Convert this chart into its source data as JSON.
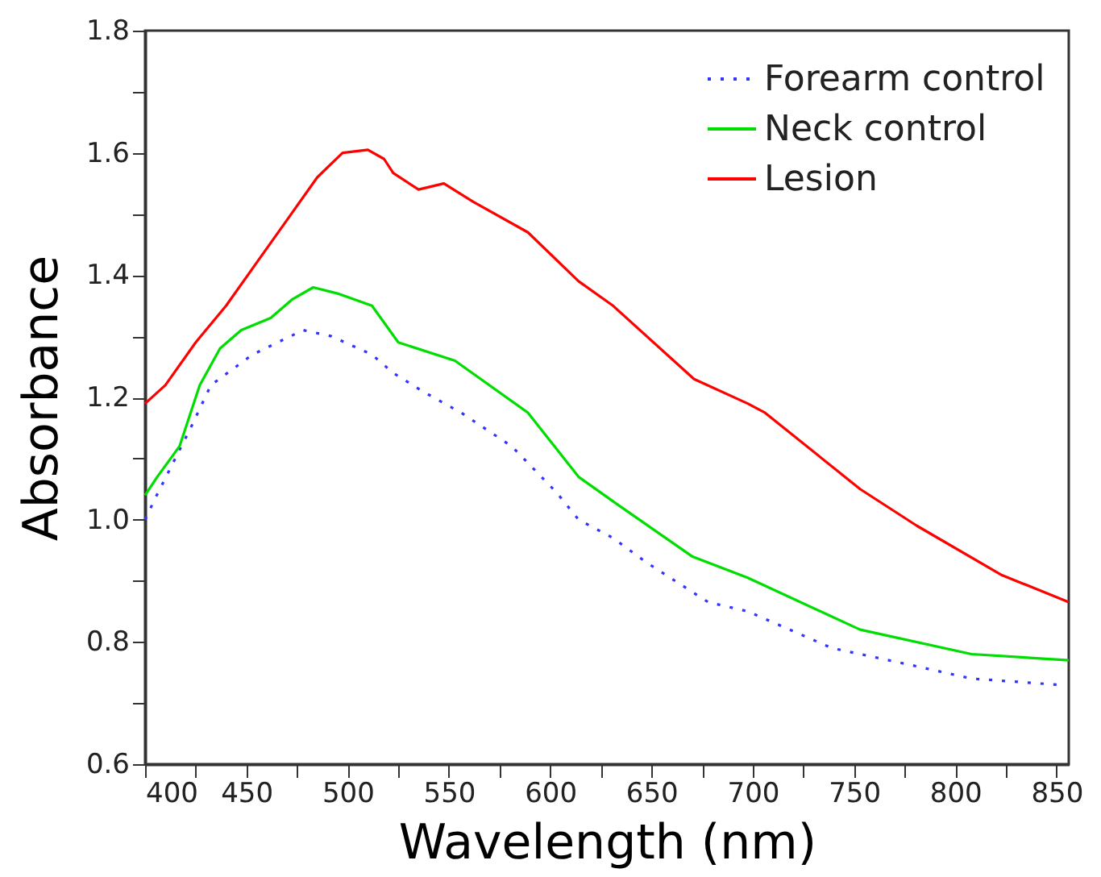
{
  "chart_data": {
    "type": "line",
    "xlabel": "Wavelength (nm)",
    "ylabel": "Absorbance",
    "xlim": [
      400,
      856
    ],
    "ylim": [
      0.6,
      1.8
    ],
    "xticks": [
      400,
      {
        "value": 425,
        "label": null
      },
      450,
      {
        "value": 475,
        "label": null
      },
      500,
      {
        "value": 525,
        "label": null
      },
      550,
      {
        "value": 575,
        "label": null
      },
      600,
      {
        "value": 625,
        "label": null
      },
      650,
      {
        "value": 675,
        "label": null
      },
      700,
      {
        "value": 725,
        "label": null
      },
      750,
      {
        "value": 775,
        "label": null
      },
      800,
      {
        "value": 825,
        "label": null
      },
      850
    ],
    "yticks": [
      {
        "value": 0.6,
        "label": "0.6"
      },
      {
        "value": 0.7,
        "label": null
      },
      {
        "value": 0.8,
        "label": "0.8"
      },
      {
        "value": 0.9,
        "label": null
      },
      {
        "value": 1,
        "label": "1.0"
      },
      {
        "value": 1.1,
        "label": null
      },
      {
        "value": 1.2,
        "label": "1.2"
      },
      {
        "value": 1.3,
        "label": null
      },
      {
        "value": 1.4,
        "label": "1.4"
      },
      {
        "value": 1.5,
        "label": null
      },
      {
        "value": 1.6,
        "label": "1.6"
      },
      {
        "value": 1.7,
        "label": null
      },
      {
        "value": 1.8,
        "label": "1.8"
      }
    ],
    "grid": false,
    "legend": "top right",
    "marker": "none",
    "series": [
      {
        "name": "Forearm control",
        "color": "#3333ff",
        "line_style": "dotted",
        "x": [
          400,
          405,
          422.5,
          432.5,
          453,
          478,
          492,
          512,
          522.5,
          537,
          556,
          581,
          603,
          614,
          631,
          647.5,
          678,
          697.5,
          739,
          781,
          808,
          850
        ],
        "values": [
          1.0,
          1.035,
          1.15,
          1.22,
          1.27,
          1.31,
          1.3,
          1.27,
          1.24,
          1.21,
          1.175,
          1.12,
          1.045,
          1.0,
          0.97,
          0.93,
          0.865,
          0.85,
          0.79,
          0.76,
          0.74,
          0.73
        ]
      },
      {
        "name": "Neck control",
        "color": "#00dd00",
        "line_style": "solid",
        "x": [
          400,
          406,
          417,
          427,
          437,
          447.5,
          462,
          472.5,
          483,
          495,
          512,
          525,
          553,
          589,
          614,
          631,
          670,
          697.5,
          753,
          808,
          856
        ],
        "values": [
          1.04,
          1.07,
          1.12,
          1.22,
          1.28,
          1.31,
          1.33,
          1.36,
          1.38,
          1.37,
          1.35,
          1.29,
          1.26,
          1.175,
          1.07,
          1.03,
          0.94,
          0.905,
          0.82,
          0.78,
          0.77
        ]
      },
      {
        "name": "Lesion",
        "color": "#ff0000",
        "line_style": "solid",
        "x": [
          400,
          410,
          425,
          440,
          455,
          470,
          485,
          497.5,
          510,
          518,
          522.5,
          535,
          547.5,
          562,
          589,
          614,
          631,
          671,
          697.5,
          706,
          753,
          781,
          822.5,
          856
        ],
        "values": [
          1.19,
          1.22,
          1.29,
          1.35,
          1.42,
          1.49,
          1.56,
          1.6,
          1.605,
          1.59,
          1.567,
          1.54,
          1.55,
          1.52,
          1.47,
          1.39,
          1.35,
          1.23,
          1.19,
          1.175,
          1.05,
          0.99,
          0.91,
          0.865
        ]
      }
    ]
  }
}
